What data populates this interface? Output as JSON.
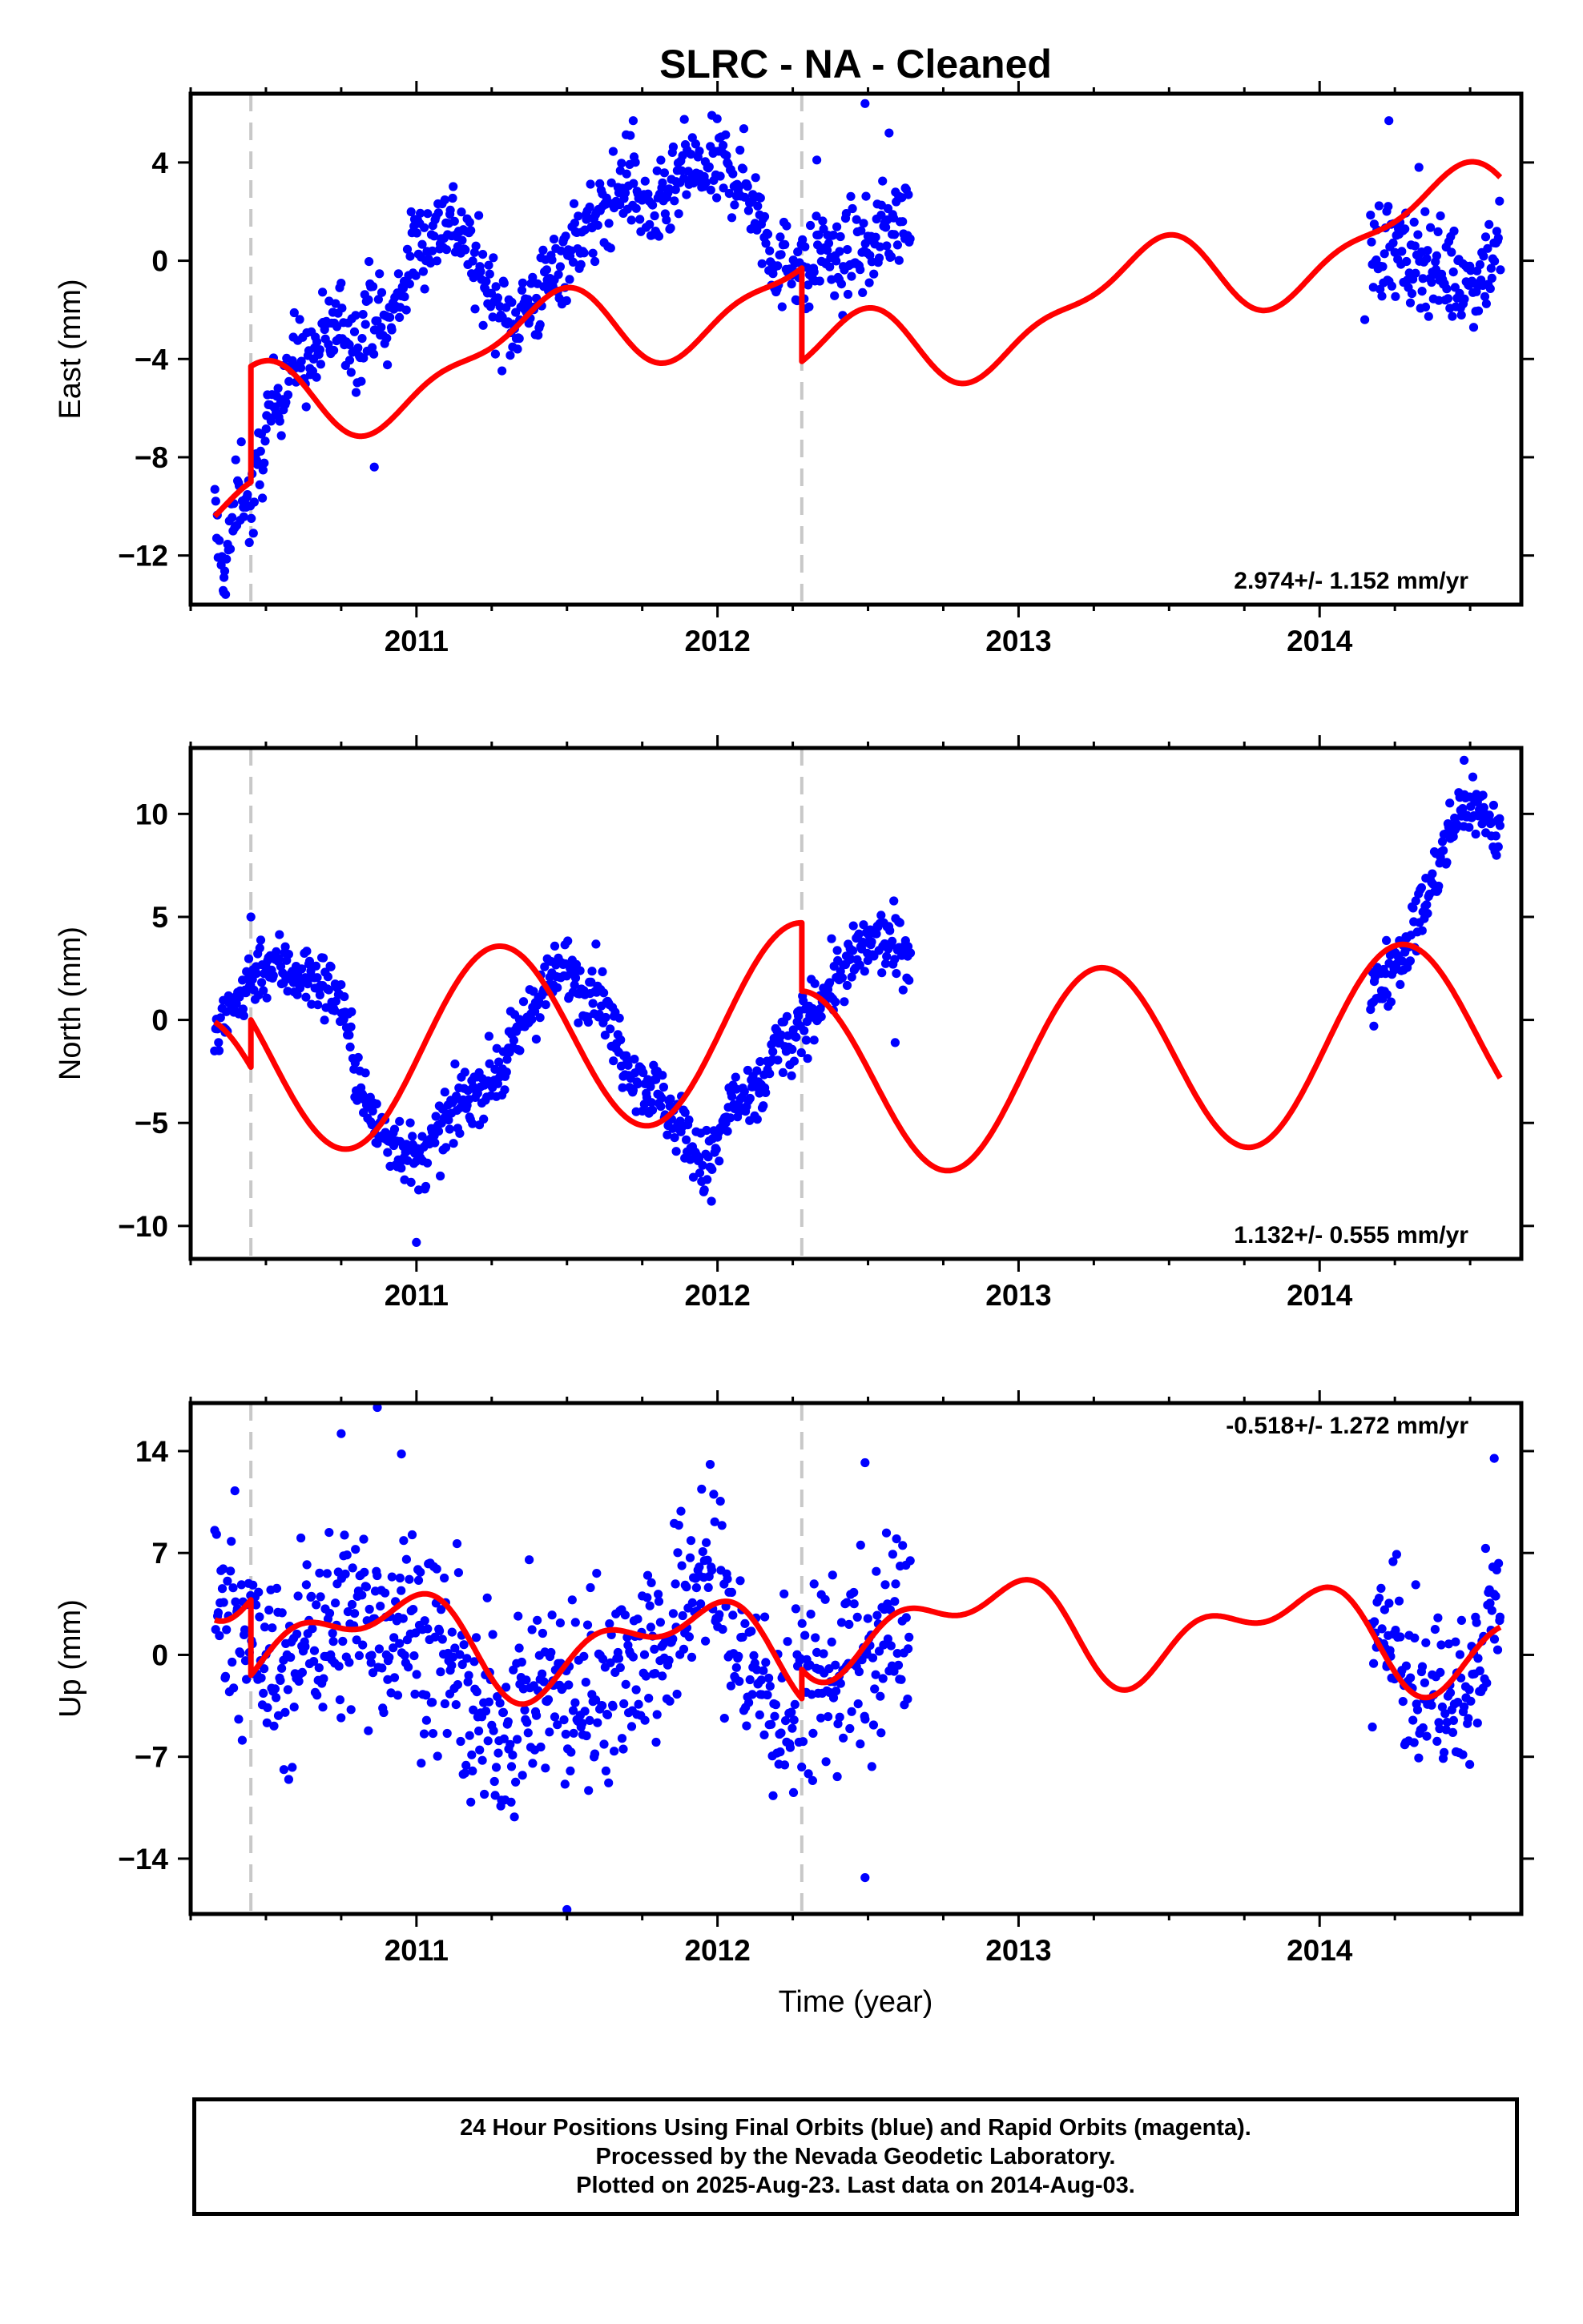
{
  "title": "SLRC  - NA - Cleaned",
  "xlabel": "Time (year)",
  "colors": {
    "points": "#0000ff",
    "model": "#ff0000",
    "breaks": "#c8c8c8",
    "frame": "#000000"
  },
  "footer": {
    "line1": "24 Hour Positions Using Final Orbits (blue) and Rapid Orbits (magenta).",
    "line2": "Processed by the Nevada Geodetic Laboratory.",
    "line3": "Plotted on 2025-Aug-23. Last data on 2014-Aug-03."
  },
  "chart_data": [
    {
      "type": "scatter",
      "ylabel": "East (mm)",
      "xlim": [
        2010.25,
        2014.67
      ],
      "ylim": [
        -14,
        6.8
      ],
      "xticks": [
        2011,
        2012,
        2013,
        2014
      ],
      "xtick_labels": [
        "2011",
        "2012",
        "2013",
        "2014"
      ],
      "yticks": [
        -12,
        -8,
        -4,
        0,
        4
      ],
      "ytick_labels": [
        "−12",
        "−8",
        "−4",
        "0",
        "4"
      ],
      "rate_label": "2.974+/- 1.152 mm/yr",
      "rate_position": "bottom-right",
      "break_lines": [
        2010.45,
        2012.28
      ],
      "data_segments": [
        {
          "start": 2010.33,
          "end": 2012.64,
          "points": [
            [
              2010.33,
              -10.2
            ],
            [
              2010.35,
              -13.1
            ],
            [
              2010.38,
              -11.4
            ],
            [
              2010.42,
              -8.8
            ],
            [
              2010.45,
              -10.3
            ],
            [
              2010.5,
              -6.9
            ],
            [
              2010.55,
              -5.1
            ],
            [
              2010.6,
              -3.9
            ],
            [
              2010.65,
              -4.2
            ],
            [
              2010.7,
              -3.1
            ],
            [
              2010.75,
              -2.4
            ],
            [
              2010.8,
              -3.5
            ],
            [
              2010.85,
              -1.6
            ],
            [
              2010.9,
              -3.0
            ],
            [
              2010.95,
              -1.2
            ],
            [
              2011.0,
              0.8
            ],
            [
              2011.05,
              0.9
            ],
            [
              2011.1,
              1.8
            ],
            [
              2011.15,
              1.2
            ],
            [
              2011.2,
              -0.4
            ],
            [
              2011.25,
              -1.2
            ],
            [
              2011.3,
              -2.7
            ],
            [
              2011.35,
              -2.0
            ],
            [
              2011.4,
              -1.6
            ],
            [
              2011.45,
              -0.6
            ],
            [
              2011.5,
              0.3
            ],
            [
              2011.55,
              1.2
            ],
            [
              2011.6,
              1.5
            ],
            [
              2011.65,
              2.4
            ],
            [
              2011.7,
              3.5
            ],
            [
              2011.75,
              2.2
            ],
            [
              2011.8,
              1.8
            ],
            [
              2011.85,
              2.7
            ],
            [
              2011.9,
              3.8
            ],
            [
              2011.95,
              3.4
            ],
            [
              2012.0,
              3.9
            ],
            [
              2012.05,
              3.6
            ],
            [
              2012.1,
              3.0
            ],
            [
              2012.15,
              1.5
            ],
            [
              2012.2,
              -0.4
            ],
            [
              2012.25,
              0.2
            ],
            [
              2012.3,
              -0.8
            ],
            [
              2012.35,
              0.8
            ],
            [
              2012.4,
              -0.5
            ],
            [
              2012.45,
              0.6
            ],
            [
              2012.5,
              0.4
            ],
            [
              2012.55,
              1.3
            ],
            [
              2012.6,
              1.7
            ]
          ],
          "outliers": [
            [
              2010.36,
              -13.5
            ],
            [
              2010.86,
              -8.4
            ],
            [
              2011.72,
              5.7
            ],
            [
              2012.49,
              6.4
            ],
            [
              2012.57,
              5.2
            ],
            [
              2012.33,
              4.1
            ]
          ],
          "spread": 0.9
        },
        {
          "start": 2014.17,
          "end": 2014.6,
          "points": [
            [
              2014.17,
              0.6
            ],
            [
              2014.2,
              0.5
            ],
            [
              2014.25,
              0.4
            ],
            [
              2014.3,
              -0.3
            ],
            [
              2014.35,
              0.2
            ],
            [
              2014.4,
              -0.4
            ],
            [
              2014.45,
              -0.6
            ],
            [
              2014.5,
              -0.9
            ],
            [
              2014.55,
              -0.2
            ],
            [
              2014.6,
              0.8
            ]
          ],
          "outliers": [
            [
              2014.23,
              5.7
            ],
            [
              2014.33,
              3.8
            ],
            [
              2014.15,
              -2.4
            ]
          ],
          "spread": 1.0
        }
      ],
      "model": {
        "segments": [
          [
            2010.33,
            2010.45
          ],
          [
            2010.45,
            2012.28
          ],
          [
            2012.28,
            2014.6
          ]
        ],
        "offsets": [
          -10.4,
          -4.3,
          -4.1
        ],
        "trend": 2.974,
        "amps": [
          [
            0.9,
            -1.4
          ],
          [
            0.3,
            0.6
          ]
        ]
      }
    },
    {
      "type": "scatter",
      "ylabel": "North (mm)",
      "xlim": [
        2010.25,
        2014.67
      ],
      "ylim": [
        -11.6,
        13.2
      ],
      "xticks": [
        2011,
        2012,
        2013,
        2014
      ],
      "xtick_labels": [
        "2011",
        "2012",
        "2013",
        "2014"
      ],
      "yticks": [
        -10,
        -5,
        0,
        5,
        10
      ],
      "ytick_labels": [
        "−10",
        "−5",
        "0",
        "5",
        "10"
      ],
      "rate_label": "1.132+/- 0.555 mm/yr",
      "rate_position": "bottom-right",
      "break_lines": [
        2010.45,
        2012.28
      ],
      "data_segments": [
        {
          "start": 2010.33,
          "end": 2012.64,
          "points": [
            [
              2010.33,
              -1.0
            ],
            [
              2010.38,
              0.3
            ],
            [
              2010.42,
              1.3
            ],
            [
              2010.48,
              2.7
            ],
            [
              2010.55,
              2.6
            ],
            [
              2010.6,
              2.3
            ],
            [
              2010.65,
              2.0
            ],
            [
              2010.7,
              1.6
            ],
            [
              2010.75,
              1.0
            ],
            [
              2010.8,
              -2.5
            ],
            [
              2010.85,
              -4.9
            ],
            [
              2010.9,
              -5.6
            ],
            [
              2010.95,
              -6.0
            ],
            [
              2011.0,
              -7.1
            ],
            [
              2011.05,
              -6.2
            ],
            [
              2011.1,
              -5.0
            ],
            [
              2011.15,
              -4.0
            ],
            [
              2011.2,
              -3.3
            ],
            [
              2011.25,
              -2.9
            ],
            [
              2011.3,
              -2.0
            ],
            [
              2011.35,
              -0.4
            ],
            [
              2011.4,
              1.1
            ],
            [
              2011.45,
              1.8
            ],
            [
              2011.5,
              2.6
            ],
            [
              2011.55,
              1.5
            ],
            [
              2011.6,
              1.8
            ],
            [
              2011.65,
              -0.5
            ],
            [
              2011.7,
              -2.0
            ],
            [
              2011.75,
              -3.0
            ],
            [
              2011.8,
              -3.6
            ],
            [
              2011.85,
              -4.6
            ],
            [
              2011.9,
              -5.6
            ],
            [
              2011.95,
              -7.2
            ],
            [
              2012.0,
              -6.2
            ],
            [
              2012.05,
              -3.8
            ],
            [
              2012.1,
              -4.4
            ],
            [
              2012.15,
              -3.2
            ],
            [
              2012.2,
              -1.0
            ],
            [
              2012.25,
              -1.4
            ],
            [
              2012.3,
              0.2
            ],
            [
              2012.35,
              1.2
            ],
            [
              2012.4,
              2.1
            ],
            [
              2012.45,
              2.8
            ],
            [
              2012.5,
              3.6
            ],
            [
              2012.55,
              3.9
            ],
            [
              2012.6,
              3.4
            ]
          ],
          "outliers": [
            [
              2011.0,
              -10.8
            ],
            [
              2012.59,
              -1.1
            ],
            [
              2010.45,
              5.0
            ],
            [
              2011.98,
              -8.8
            ]
          ],
          "spread": 0.8
        },
        {
          "start": 2014.17,
          "end": 2014.6,
          "points": [
            [
              2014.17,
              1.0
            ],
            [
              2014.2,
              1.7
            ],
            [
              2014.25,
              3.0
            ],
            [
              2014.3,
              3.9
            ],
            [
              2014.35,
              5.6
            ],
            [
              2014.4,
              7.6
            ],
            [
              2014.45,
              9.7
            ],
            [
              2014.5,
              10.6
            ],
            [
              2014.55,
              9.9
            ],
            [
              2014.6,
              9.0
            ]
          ],
          "outliers": [
            [
              2014.48,
              12.6
            ],
            [
              2014.18,
              -0.3
            ]
          ],
          "spread": 0.8
        }
      ],
      "model": {
        "segments": [
          [
            2010.33,
            2010.45
          ],
          [
            2010.45,
            2012.28
          ],
          [
            2012.28,
            2014.6
          ]
        ],
        "offsets": [
          -0.1,
          0.0,
          1.4
        ],
        "trend": 1.132,
        "amps": [
          [
            4.6,
            -0.6
          ],
          [
            0.0,
            0.0
          ]
        ]
      }
    },
    {
      "type": "scatter",
      "ylabel": "Up (mm)",
      "xlabel": "Time (year)",
      "xlim": [
        2010.25,
        2014.67
      ],
      "ylim": [
        -17.8,
        17.3
      ],
      "xticks": [
        2011,
        2012,
        2013,
        2014
      ],
      "xtick_labels": [
        "2011",
        "2012",
        "2013",
        "2014"
      ],
      "yticks": [
        -14,
        -7,
        0,
        7,
        14
      ],
      "ytick_labels": [
        "−14",
        "−7",
        "0",
        "7",
        "14"
      ],
      "rate_label": "-0.518+/- 1.272 mm/yr",
      "rate_position": "top-right",
      "break_lines": [
        2010.45,
        2012.28
      ],
      "data_segments": [
        {
          "start": 2010.33,
          "end": 2012.64,
          "points": [
            [
              2010.33,
              3.0
            ],
            [
              2010.4,
              3.8
            ],
            [
              2010.45,
              1.0
            ],
            [
              2010.5,
              -1.2
            ],
            [
              2010.55,
              -1.6
            ],
            [
              2010.6,
              -0.8
            ],
            [
              2010.65,
              2.7
            ],
            [
              2010.7,
              1.5
            ],
            [
              2010.75,
              2.1
            ],
            [
              2010.8,
              2.8
            ],
            [
              2010.85,
              2.2
            ],
            [
              2010.9,
              1.9
            ],
            [
              2010.95,
              2.9
            ],
            [
              2011.0,
              1.7
            ],
            [
              2011.05,
              0.6
            ],
            [
              2011.1,
              -0.4
            ],
            [
              2011.15,
              -2.0
            ],
            [
              2011.2,
              -5.7
            ],
            [
              2011.25,
              -4.1
            ],
            [
              2011.3,
              -4.9
            ],
            [
              2011.35,
              -3.2
            ],
            [
              2011.4,
              -2.9
            ],
            [
              2011.45,
              -2.1
            ],
            [
              2011.5,
              -3.2
            ],
            [
              2011.55,
              -2.9
            ],
            [
              2011.6,
              -1.6
            ],
            [
              2011.65,
              -1.4
            ],
            [
              2011.7,
              -0.8
            ],
            [
              2011.75,
              0.6
            ],
            [
              2011.8,
              0.4
            ],
            [
              2011.85,
              1.2
            ],
            [
              2011.9,
              4.1
            ],
            [
              2011.95,
              6.3
            ],
            [
              2012.0,
              4.8
            ],
            [
              2012.05,
              1.6
            ],
            [
              2012.1,
              -1.2
            ],
            [
              2012.15,
              -2.0
            ],
            [
              2012.2,
              -3.8
            ],
            [
              2012.25,
              -4.6
            ],
            [
              2012.3,
              -1.3
            ],
            [
              2012.35,
              -1.5
            ],
            [
              2012.4,
              -1.0
            ],
            [
              2012.45,
              -0.3
            ],
            [
              2012.5,
              -1.2
            ],
            [
              2012.55,
              0.8
            ],
            [
              2012.6,
              2.5
            ]
          ],
          "outliers": [
            [
              2010.87,
              17.0
            ],
            [
              2011.5,
              -17.5
            ],
            [
              2012.49,
              -15.3
            ],
            [
              2012.49,
              13.2
            ],
            [
              2010.75,
              15.2
            ],
            [
              2010.95,
              13.8
            ]
          ],
          "spread": 3.4
        },
        {
          "start": 2014.17,
          "end": 2014.6,
          "points": [
            [
              2014.17,
              0.2
            ],
            [
              2014.2,
              1.6
            ],
            [
              2014.25,
              0.3
            ],
            [
              2014.3,
              -2.4
            ],
            [
              2014.35,
              -3.5
            ],
            [
              2014.4,
              -2.1
            ],
            [
              2014.45,
              -3.6
            ],
            [
              2014.5,
              -2.9
            ],
            [
              2014.55,
              1.8
            ],
            [
              2014.6,
              4.2
            ]
          ],
          "outliers": [
            [
              2014.58,
              13.5
            ]
          ],
          "spread": 2.6
        }
      ],
      "model": {
        "segments": [
          [
            2010.33,
            2010.45
          ],
          [
            2010.45,
            2012.28
          ],
          [
            2012.28,
            2014.6
          ]
        ],
        "offsets": [
          2.4,
          -1.4,
          -1.0
        ],
        "trend": -0.518,
        "amps": [
          [
            -1.6,
            2.2
          ],
          [
            1.4,
            0.9
          ]
        ]
      }
    }
  ]
}
